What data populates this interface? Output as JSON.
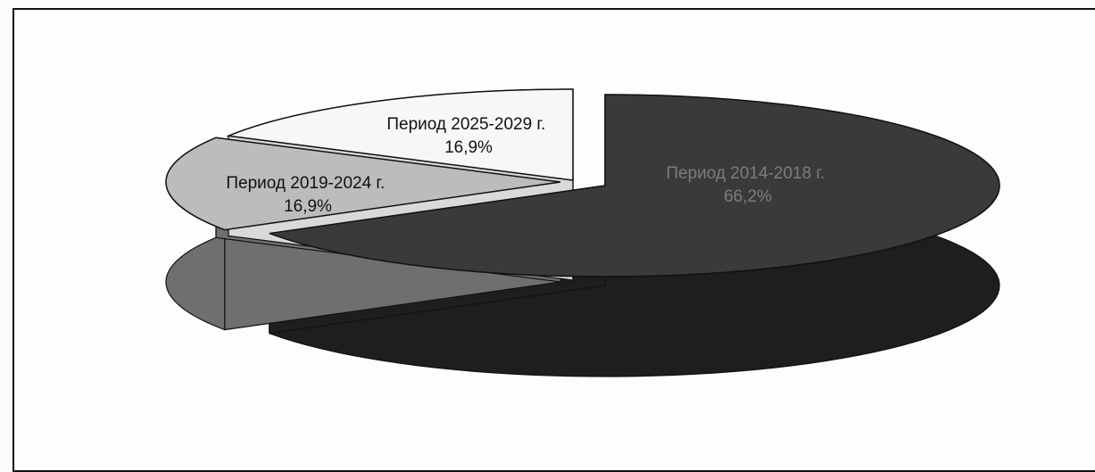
{
  "chart_data": {
    "type": "pie",
    "style": "3d-exploded",
    "slices": [
      {
        "label": "Период 2014-2018 г.",
        "value": 66.2,
        "value_label": "66,2%",
        "color": "#3a3a3a",
        "side_color": "#1e1e1e",
        "label_color": "#7c7c7c"
      },
      {
        "label": "Период 2019-2024 г.",
        "value": 16.9,
        "value_label": "16,9%",
        "color": "#bcbcbc",
        "side_color": "#6f6f6f",
        "label_color": "#111111"
      },
      {
        "label": "Период 2025-2029 г.",
        "value": 16.9,
        "value_label": "16,9%",
        "color": "#f7f7f7",
        "side_color": "#d9d9d9",
        "label_color": "#111111"
      }
    ]
  }
}
